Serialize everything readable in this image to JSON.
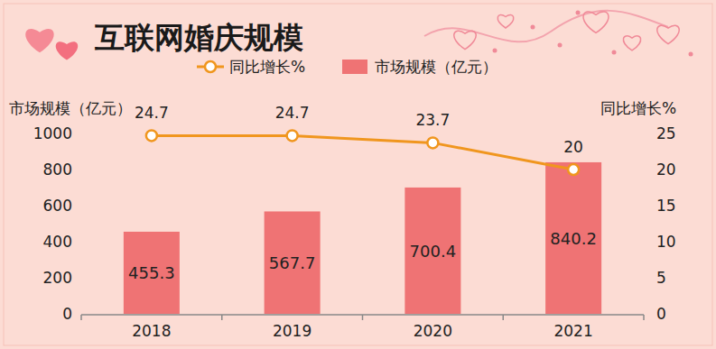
{
  "chart_data": {
    "type": "bar",
    "title": "互联网婚庆规模",
    "categories": [
      "2018",
      "2019",
      "2020",
      "2021"
    ],
    "series": [
      {
        "name": "同比增长%",
        "type": "line",
        "color": "#f0961e",
        "marker": "circle",
        "axis": "y2",
        "values": [
          24.7,
          24.7,
          23.7,
          20
        ]
      },
      {
        "name": "市场规模（亿元）",
        "type": "bar",
        "color": "#ef7374",
        "values": [
          455.3,
          567.7,
          700.4,
          840.2
        ]
      }
    ],
    "y_label": "市场规模（亿元）",
    "y2_label": "同比增长%",
    "ylim": [
      0,
      1000
    ],
    "yticks": [
      0,
      200,
      400,
      600,
      800,
      1000
    ],
    "y2lim": [
      0,
      25
    ],
    "y2ticks": [
      0,
      5,
      10,
      15,
      20,
      25
    ],
    "grid": false,
    "data_labels": true,
    "legend": "top"
  }
}
